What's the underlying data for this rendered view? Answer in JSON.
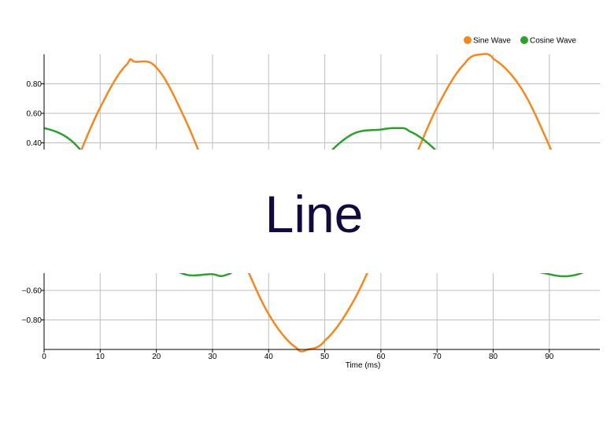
{
  "chart_data": {
    "type": "line",
    "xlabel": "Time (ms)",
    "ylabel": "",
    "xlim": [
      0,
      99
    ],
    "ylim": [
      -1,
      1
    ],
    "x_ticks": [
      0,
      10,
      20,
      30,
      40,
      50,
      60,
      70,
      80,
      90
    ],
    "x_tick_labels": [
      "0",
      "10",
      "20",
      "30",
      "40",
      "50",
      "60",
      "70",
      "80",
      "90"
    ],
    "y_tick_labels_visible": [
      "0.80",
      "0.60",
      "0.40",
      "−0.60",
      "−0.80"
    ],
    "grid": true,
    "legend_position": "top-right",
    "series": [
      {
        "name": "Sine Wave",
        "color": "#f5871f",
        "x": [
          0,
          5,
          10,
          15,
          16,
          20,
          25,
          30,
          35,
          40,
          45,
          47,
          50,
          55,
          60,
          65,
          70,
          75,
          78,
          80,
          85,
          90,
          95,
          99
        ],
        "y": [
          -0.27,
          0.2,
          0.64,
          0.94,
          0.95,
          0.91,
          0.57,
          0.11,
          -0.35,
          -0.76,
          -0.99,
          -1.0,
          -0.94,
          -0.68,
          -0.27,
          0.2,
          0.64,
          0.94,
          1.0,
          0.97,
          0.77,
          0.38,
          -0.09,
          -0.42
        ]
      },
      {
        "name": "Cosine Wave",
        "color": "#2ca02c",
        "x": [
          0,
          5,
          10,
          15,
          16,
          20,
          25,
          30,
          32,
          35,
          40,
          45,
          50,
          55,
          60,
          63,
          65,
          70,
          75,
          80,
          85,
          90,
          94,
          99
        ],
        "y": [
          0.5,
          0.41,
          0.17,
          -0.13,
          -0.17,
          -0.37,
          -0.49,
          -0.49,
          -0.5,
          -0.43,
          -0.24,
          0.05,
          0.3,
          0.46,
          0.49,
          0.5,
          0.48,
          0.34,
          0.09,
          -0.2,
          -0.42,
          -0.49,
          -0.5,
          -0.44
        ]
      }
    ]
  },
  "overlay": {
    "text": "Line",
    "text_color": "#120a3b"
  }
}
